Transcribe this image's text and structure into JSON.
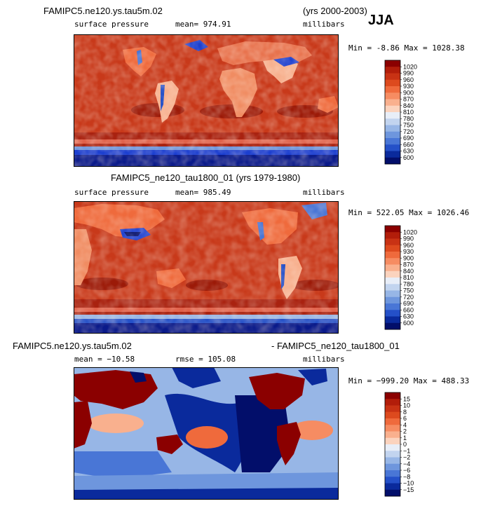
{
  "season": "JJA",
  "panels": [
    {
      "title_left": "FAMIPC5.ne120.ys.tau5m.02",
      "title_right": "(yrs 2000-2003)",
      "variable": "surface pressure",
      "stat_text": "mean= 974.91",
      "units": "millibars",
      "minmax": "Min =   -8.86 Max = 1028.38"
    },
    {
      "title_center": "FAMIPC5_ne120_tau1800_01 (yrs 1979-1980)",
      "variable": "surface pressure",
      "stat_text": "mean= 985.49",
      "units": "millibars",
      "minmax": "Min = 522.05 Max = 1026.46"
    },
    {
      "title_left": "FAMIPC5.ne120.ys.tau5m.02",
      "title_right": "- FAMIPC5_ne120_tau1800_01",
      "stat_text": "mean = −10.58",
      "rmse_text": "rmse = 105.08",
      "units": "millibars",
      "minmax": "Min = −999.20 Max = 488.33"
    }
  ],
  "chart_data": [
    {
      "type": "heatmap",
      "title": "FAMIPC5.ne120.ys.tau5m.02",
      "colorbar": {
        "levels": [
          "1020",
          "990",
          "960",
          "930",
          "900",
          "870",
          "840",
          "810",
          "780",
          "750",
          "720",
          "690",
          "660",
          "630",
          "600"
        ],
        "colors": [
          "#8b0000",
          "#b21d0a",
          "#c83214",
          "#dd4a1e",
          "#ef6a3c",
          "#f68c62",
          "#f9b08e",
          "#fbd3be",
          "#e8eef8",
          "#c2d4ef",
          "#97b6e6",
          "#6e96dd",
          "#4976d6",
          "#2450c8",
          "#0a2a9c",
          "#020e6a"
        ]
      }
    },
    {
      "type": "heatmap",
      "title": "FAMIPC5_ne120_tau1800_01 (yrs 1979-1980)",
      "colorbar": {
        "levels": [
          "1020",
          "990",
          "960",
          "930",
          "900",
          "870",
          "840",
          "810",
          "780",
          "750",
          "720",
          "690",
          "660",
          "630",
          "600"
        ],
        "colors": [
          "#8b0000",
          "#b21d0a",
          "#c83214",
          "#dd4a1e",
          "#ef6a3c",
          "#f68c62",
          "#f9b08e",
          "#fbd3be",
          "#e8eef8",
          "#c2d4ef",
          "#97b6e6",
          "#6e96dd",
          "#4976d6",
          "#2450c8",
          "#0a2a9c",
          "#020e6a"
        ]
      }
    },
    {
      "type": "heatmap",
      "title": "FAMIPC5.ne120.ys.tau5m.02 - FAMIPC5_ne120_tau1800_01",
      "colorbar": {
        "levels": [
          "15",
          "10",
          "8",
          "6",
          "4",
          "2",
          "1",
          "0",
          "−1",
          "−2",
          "−4",
          "−6",
          "−8",
          "−10",
          "−15"
        ],
        "colors": [
          "#8b0000",
          "#b21d0a",
          "#c83214",
          "#dd4a1e",
          "#ef6a3c",
          "#f68c62",
          "#f9b08e",
          "#fbd3be",
          "#e8eef8",
          "#c2d4ef",
          "#97b6e6",
          "#6e96dd",
          "#4976d6",
          "#2450c8",
          "#0a2a9c",
          "#020e6a"
        ]
      }
    }
  ]
}
